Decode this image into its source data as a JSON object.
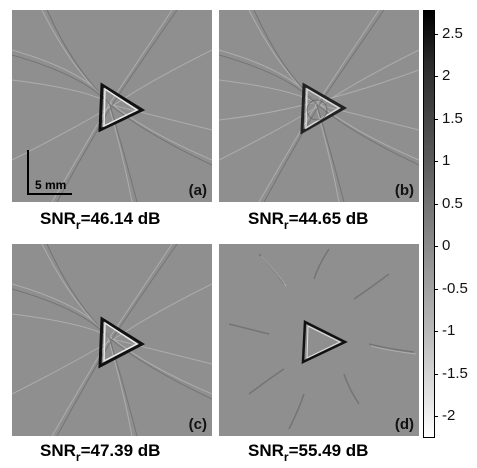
{
  "panels": [
    {
      "tag": "(a)",
      "snr_value": "=46.14 dB"
    },
    {
      "tag": "(b)",
      "snr_value": "=44.65 dB"
    },
    {
      "tag": "(c)",
      "snr_value": "=47.39 dB"
    },
    {
      "tag": "(d)",
      "snr_value": "=55.49 dB"
    }
  ],
  "snr_label": "SNR",
  "snr_sub": "r",
  "scale_bar": "5 mm",
  "colorbar": {
    "ticks": [
      "2.5",
      "2",
      "1.5",
      "1",
      "0.5",
      "0",
      "-0.5",
      "-1",
      "-1.5",
      "-2"
    ]
  }
}
